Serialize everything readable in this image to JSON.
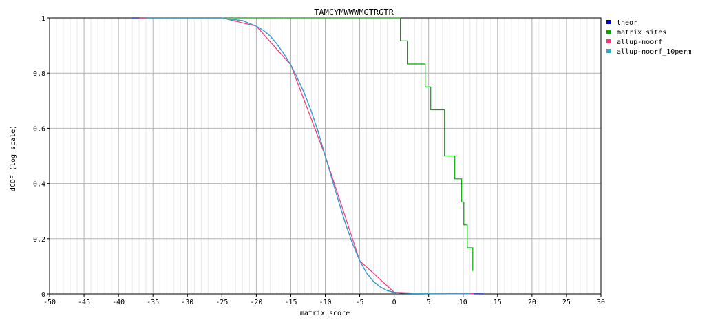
{
  "chart_data": {
    "type": "line",
    "title": "TAMCYMWWWMGTRGTR",
    "xlabel": "matrix score",
    "ylabel": "dCDF (log scale)",
    "xlim": [
      -50,
      30
    ],
    "ylim": [
      0,
      1
    ],
    "x_ticks": [
      "-50",
      "-45",
      "-40",
      "-35",
      "-30",
      "-25",
      "-20",
      "-15",
      "-10",
      "-5",
      "0",
      "5",
      "10",
      "15",
      "20",
      "25",
      "30"
    ],
    "y_ticks": [
      "0",
      "0.2",
      "0.4",
      "0.6",
      "0.8",
      "1"
    ],
    "grid": true,
    "legend_position": "right",
    "series": [
      {
        "name": "theor",
        "color": "#0000cc",
        "step": false,
        "points": [
          [
            -38,
            1
          ],
          [
            -30,
            1
          ],
          [
            -25,
            1
          ],
          [
            -24,
            0.995
          ],
          [
            -23,
            0.993
          ],
          [
            -22,
            0.99
          ],
          [
            -21,
            0.98
          ],
          [
            -20,
            0.97
          ],
          [
            -19,
            0.955
          ],
          [
            -18,
            0.935
          ],
          [
            -17,
            0.905
          ],
          [
            -16,
            0.87
          ],
          [
            -15,
            0.83
          ],
          [
            -14,
            0.78
          ],
          [
            -13,
            0.725
          ],
          [
            -12,
            0.66
          ],
          [
            -11,
            0.585
          ],
          [
            -10,
            0.5
          ],
          [
            -9,
            0.415
          ],
          [
            -8,
            0.33
          ],
          [
            -7,
            0.25
          ],
          [
            -6,
            0.18
          ],
          [
            -5,
            0.12
          ],
          [
            -4,
            0.075
          ],
          [
            -3,
            0.045
          ],
          [
            -2,
            0.025
          ],
          [
            -1,
            0.012
          ],
          [
            0,
            0.006
          ],
          [
            1,
            0.003
          ],
          [
            3,
            0.0015
          ],
          [
            5,
            0.001
          ],
          [
            8,
            0.0006
          ],
          [
            10,
            0.0004
          ],
          [
            12,
            0.0002
          ],
          [
            13,
            0.0001
          ]
        ]
      },
      {
        "name": "matrix_sites",
        "color": "#00aa00",
        "step": true,
        "points": [
          [
            -37,
            1
          ],
          [
            0.9,
            1
          ],
          [
            0.9,
            0.917
          ],
          [
            1.9,
            0.917
          ],
          [
            1.9,
            0.833
          ],
          [
            4.5,
            0.833
          ],
          [
            4.5,
            0.75
          ],
          [
            5.3,
            0.75
          ],
          [
            5.3,
            0.667
          ],
          [
            7.3,
            0.667
          ],
          [
            7.3,
            0.5
          ],
          [
            8.8,
            0.5
          ],
          [
            8.8,
            0.417
          ],
          [
            9.8,
            0.417
          ],
          [
            9.8,
            0.333
          ],
          [
            10.1,
            0.333
          ],
          [
            10.1,
            0.25
          ],
          [
            10.6,
            0.25
          ],
          [
            10.6,
            0.167
          ],
          [
            11.4,
            0.167
          ],
          [
            11.4,
            0.083
          ]
        ]
      },
      {
        "name": "allup-noorf",
        "color": "#ff3377",
        "step": false,
        "points": [
          [
            -37,
            1
          ],
          [
            -25,
            1
          ],
          [
            -20,
            0.97
          ],
          [
            -15,
            0.83
          ],
          [
            -10,
            0.5
          ],
          [
            -5,
            0.12
          ],
          [
            0,
            0.006
          ],
          [
            5,
            0.001
          ],
          [
            10,
            0.0004
          ],
          [
            11.5,
            0.0003
          ]
        ]
      },
      {
        "name": "allup-noorf_10perm",
        "color": "#33aacc",
        "step": false,
        "points": [
          [
            -36,
            1
          ],
          [
            -30,
            1
          ],
          [
            -25,
            1
          ],
          [
            -24,
            0.995
          ],
          [
            -23,
            0.993
          ],
          [
            -22,
            0.99
          ],
          [
            -21,
            0.98
          ],
          [
            -20,
            0.97
          ],
          [
            -19,
            0.955
          ],
          [
            -18,
            0.935
          ],
          [
            -17,
            0.905
          ],
          [
            -16,
            0.87
          ],
          [
            -15,
            0.83
          ],
          [
            -14,
            0.78
          ],
          [
            -13,
            0.725
          ],
          [
            -12,
            0.66
          ],
          [
            -11,
            0.585
          ],
          [
            -10,
            0.5
          ],
          [
            -9,
            0.415
          ],
          [
            -8,
            0.33
          ],
          [
            -7,
            0.25
          ],
          [
            -6,
            0.18
          ],
          [
            -5,
            0.12
          ],
          [
            -4,
            0.075
          ],
          [
            -3,
            0.045
          ],
          [
            -2,
            0.025
          ],
          [
            -1,
            0.012
          ],
          [
            0,
            0.006
          ],
          [
            1,
            0.003
          ],
          [
            3,
            0.0015
          ],
          [
            5,
            0.001
          ],
          [
            8,
            0.0006
          ],
          [
            10,
            0.0004
          ],
          [
            11,
            0.0003
          ]
        ]
      }
    ]
  }
}
